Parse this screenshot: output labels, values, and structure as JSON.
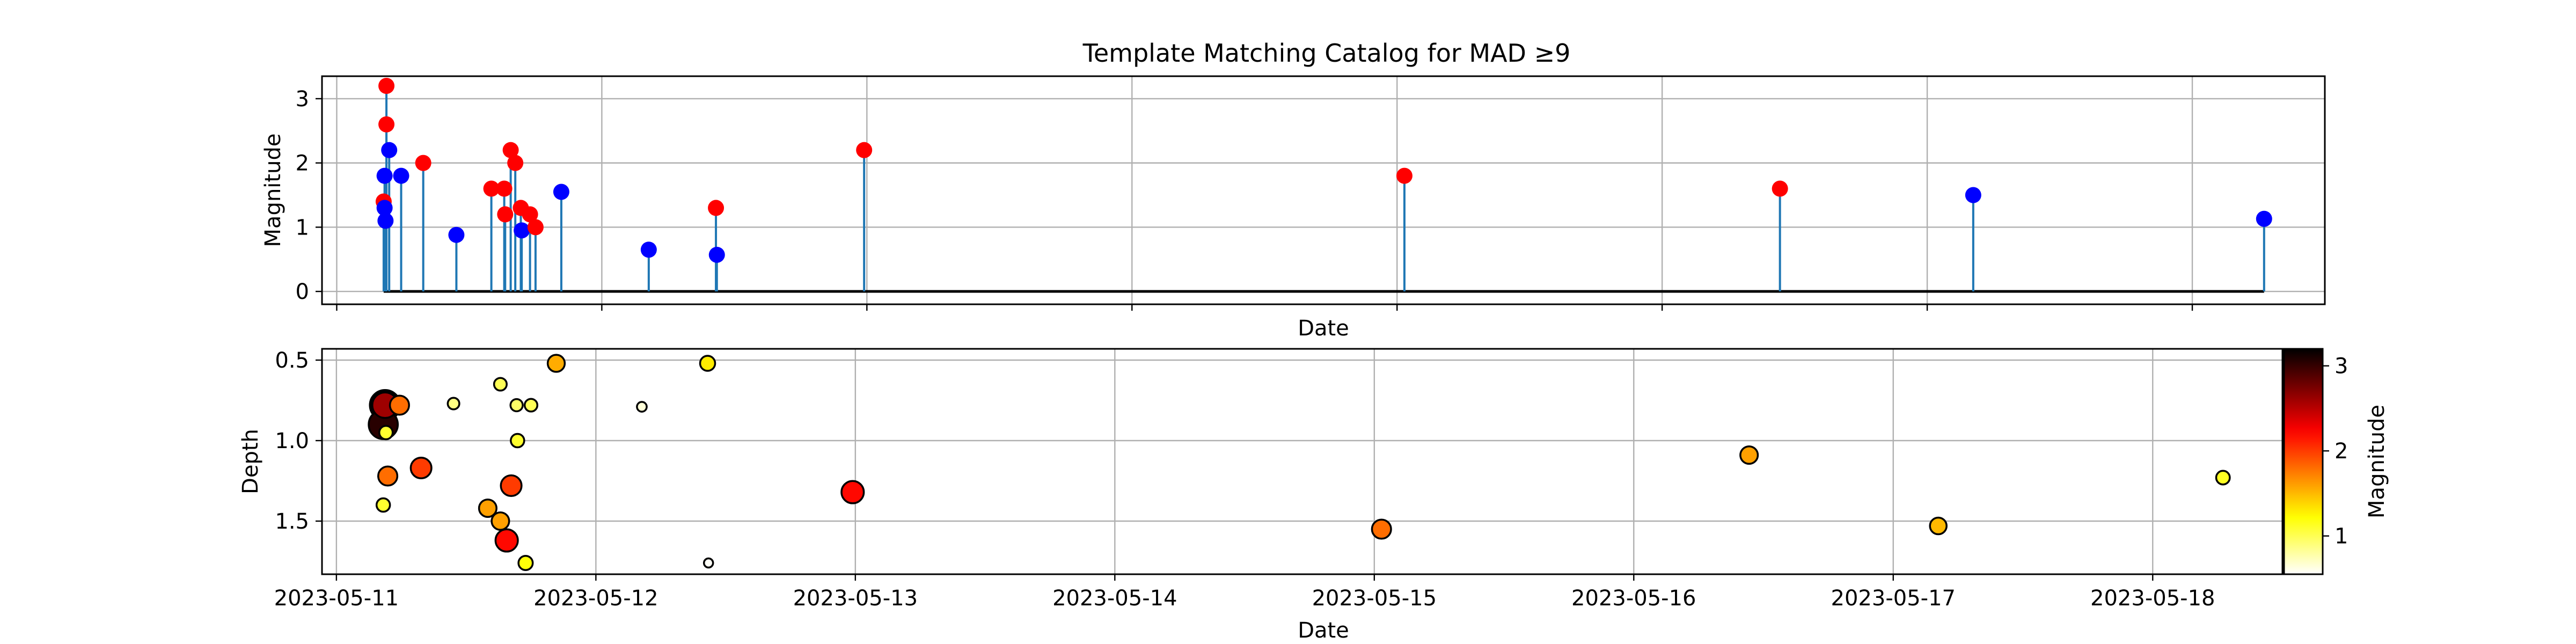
{
  "figure": {
    "title": "Template Matching Catalog for MAD ≥9"
  },
  "chart_data": [
    {
      "type": "scatter",
      "variant": "stem",
      "title": "Template Matching Catalog for MAD ≥9",
      "xlabel": "Date",
      "ylabel": "Magnitude",
      "x_tick_labels_shown": false,
      "xlim": [
        "2023-05-10 22:40",
        "2023-05-18 12:00"
      ],
      "ylim": [
        -0.2,
        3.35
      ],
      "yticks": [
        0,
        1,
        2,
        3
      ],
      "grid": true,
      "baseline": 0,
      "colors": {
        "stem": "#1f77b4",
        "baseline": "#000000",
        "red_marker": "#ff0000",
        "blue_marker": "#0000ff"
      },
      "points": [
        {
          "x": "2023-05-11 04:30",
          "y": 3.2,
          "color": "red"
        },
        {
          "x": "2023-05-11 04:30",
          "y": 2.6,
          "color": "red"
        },
        {
          "x": "2023-05-11 04:45",
          "y": 2.2,
          "color": "blue"
        },
        {
          "x": "2023-05-11 04:20",
          "y": 1.8,
          "color": "blue"
        },
        {
          "x": "2023-05-11 05:50",
          "y": 1.8,
          "color": "blue"
        },
        {
          "x": "2023-05-11 04:15",
          "y": 1.4,
          "color": "red"
        },
        {
          "x": "2023-05-11 04:20",
          "y": 1.3,
          "color": "blue"
        },
        {
          "x": "2023-05-11 04:25",
          "y": 1.1,
          "color": "blue"
        },
        {
          "x": "2023-05-11 07:50",
          "y": 2.0,
          "color": "red"
        },
        {
          "x": "2023-05-11 10:50",
          "y": 0.88,
          "color": "blue"
        },
        {
          "x": "2023-05-11 14:00",
          "y": 1.6,
          "color": "red"
        },
        {
          "x": "2023-05-11 15:10",
          "y": 1.6,
          "color": "red"
        },
        {
          "x": "2023-05-11 15:15",
          "y": 1.2,
          "color": "red"
        },
        {
          "x": "2023-05-11 15:45",
          "y": 2.2,
          "color": "red"
        },
        {
          "x": "2023-05-11 16:10",
          "y": 2.0,
          "color": "red"
        },
        {
          "x": "2023-05-11 16:40",
          "y": 1.3,
          "color": "red"
        },
        {
          "x": "2023-05-11 16:45",
          "y": 0.95,
          "color": "blue"
        },
        {
          "x": "2023-05-11 17:30",
          "y": 1.2,
          "color": "red"
        },
        {
          "x": "2023-05-11 18:00",
          "y": 1.0,
          "color": "red"
        },
        {
          "x": "2023-05-11 20:20",
          "y": 1.55,
          "color": "blue"
        },
        {
          "x": "2023-05-12 04:15",
          "y": 0.65,
          "color": "blue"
        },
        {
          "x": "2023-05-12 10:20",
          "y": 1.3,
          "color": "red"
        },
        {
          "x": "2023-05-12 10:25",
          "y": 0.57,
          "color": "blue"
        },
        {
          "x": "2023-05-12 23:45",
          "y": 2.2,
          "color": "red"
        },
        {
          "x": "2023-05-15 00:40",
          "y": 1.8,
          "color": "red"
        },
        {
          "x": "2023-05-16 10:40",
          "y": 1.6,
          "color": "red"
        },
        {
          "x": "2023-05-17 04:10",
          "y": 1.5,
          "color": "blue"
        },
        {
          "x": "2023-05-18 06:30",
          "y": 1.13,
          "color": "blue"
        }
      ]
    },
    {
      "type": "scatter",
      "xlabel": "Date",
      "ylabel": "Depth",
      "xlim": [
        "2023-05-10 22:40",
        "2023-05-18 12:00"
      ],
      "x_tick_labels": [
        "2023-05-11",
        "2023-05-12",
        "2023-05-13",
        "2023-05-14",
        "2023-05-15",
        "2023-05-16",
        "2023-05-17",
        "2023-05-18"
      ],
      "ylim": [
        1.83,
        0.43
      ],
      "y_inverted": true,
      "yticks": [
        0.5,
        1.0,
        1.5
      ],
      "ytick_labels": [
        "0.5",
        "1.0",
        "1.5"
      ],
      "grid": true,
      "colorbar": {
        "label": "Magnitude",
        "range": [
          0.55,
          3.2
        ],
        "ticks": [
          1,
          2,
          3
        ],
        "colormap": "hot_r",
        "placement": "right"
      },
      "marker_size_encodes": "Magnitude",
      "points": [
        {
          "x": "2023-05-11 04:30",
          "y": 0.78,
          "mag": 3.2
        },
        {
          "x": "2023-05-11 05:50",
          "y": 0.78,
          "mag": 1.8
        },
        {
          "x": "2023-05-11 04:30",
          "y": 0.78,
          "mag": 2.6
        },
        {
          "x": "2023-05-11 04:20",
          "y": 0.9,
          "mag": 3.05
        },
        {
          "x": "2023-05-11 04:35",
          "y": 0.95,
          "mag": 1.1
        },
        {
          "x": "2023-05-11 04:45",
          "y": 1.22,
          "mag": 1.8
        },
        {
          "x": "2023-05-11 04:20",
          "y": 1.4,
          "mag": 1.1
        },
        {
          "x": "2023-05-11 07:50",
          "y": 1.17,
          "mag": 2.0
        },
        {
          "x": "2023-05-11 10:50",
          "y": 0.77,
          "mag": 0.88
        },
        {
          "x": "2023-05-11 15:10",
          "y": 0.65,
          "mag": 1.0
        },
        {
          "x": "2023-05-11 16:40",
          "y": 0.78,
          "mag": 0.95
        },
        {
          "x": "2023-05-11 18:00",
          "y": 0.78,
          "mag": 1.0
        },
        {
          "x": "2023-05-11 16:45",
          "y": 1.0,
          "mag": 1.1
        },
        {
          "x": "2023-05-11 16:10",
          "y": 1.28,
          "mag": 2.0
        },
        {
          "x": "2023-05-11 14:00",
          "y": 1.42,
          "mag": 1.6
        },
        {
          "x": "2023-05-11 15:10",
          "y": 1.5,
          "mag": 1.6
        },
        {
          "x": "2023-05-11 15:45",
          "y": 1.62,
          "mag": 2.2
        },
        {
          "x": "2023-05-11 17:30",
          "y": 1.76,
          "mag": 1.2
        },
        {
          "x": "2023-05-11 20:20",
          "y": 0.52,
          "mag": 1.55
        },
        {
          "x": "2023-05-12 10:20",
          "y": 0.52,
          "mag": 1.3
        },
        {
          "x": "2023-05-12 04:15",
          "y": 0.79,
          "mag": 0.65
        },
        {
          "x": "2023-05-12 10:25",
          "y": 1.76,
          "mag": 0.57
        },
        {
          "x": "2023-05-12 23:45",
          "y": 1.32,
          "mag": 2.2
        },
        {
          "x": "2023-05-15 00:40",
          "y": 1.55,
          "mag": 1.8
        },
        {
          "x": "2023-05-16 10:40",
          "y": 1.09,
          "mag": 1.6
        },
        {
          "x": "2023-05-17 04:10",
          "y": 1.53,
          "mag": 1.5
        },
        {
          "x": "2023-05-18 06:30",
          "y": 1.23,
          "mag": 1.13
        }
      ]
    }
  ]
}
